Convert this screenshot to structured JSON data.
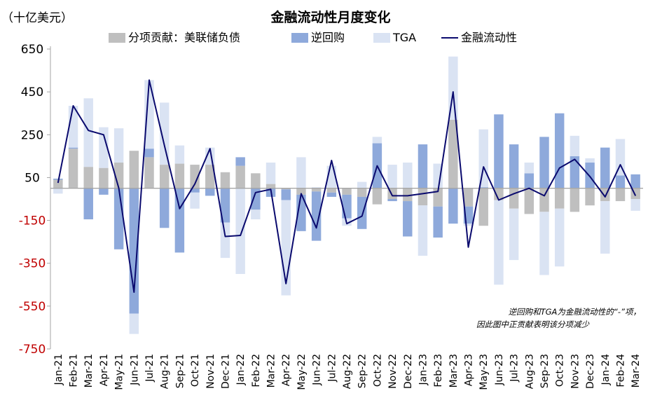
{
  "chart_data": {
    "type": "bar",
    "title": "金融流动性月度变化",
    "unit_label": "（十亿美元）",
    "stacked": true,
    "ylim": [
      -750,
      650
    ],
    "yticks": [
      650,
      450,
      250,
      50,
      -150,
      -350,
      -550,
      -750
    ],
    "grid": false,
    "legend_position": "top",
    "categories": [
      "Jan-21",
      "Feb-21",
      "Mar-21",
      "Apr-21",
      "May-21",
      "Jun-21",
      "Jul-21",
      "Aug-21",
      "Sep-21",
      "Oct-21",
      "Nov-21",
      "Dec-21",
      "Jan-22",
      "Feb-22",
      "Mar-22",
      "Apr-22",
      "May-22",
      "Jun-22",
      "Jul-22",
      "Aug-22",
      "Sep-22",
      "Oct-22",
      "Nov-22",
      "Dec-22",
      "Jan-23",
      "Feb-23",
      "Mar-23",
      "Apr-23",
      "May-23",
      "Jun-23",
      "Jul-23",
      "Aug-23",
      "Sep-23",
      "Oct-23",
      "Nov-23",
      "Dec-23",
      "Jan-24",
      "Feb-24",
      "Mar-24"
    ],
    "series": [
      {
        "name": "分项贡献：美联储负债",
        "type": "bar",
        "color": "#bfbfbf",
        "values": [
          40,
          185,
          100,
          95,
          120,
          175,
          145,
          110,
          115,
          110,
          110,
          75,
          105,
          70,
          20,
          -5,
          -30,
          -15,
          -20,
          -30,
          -40,
          -75,
          -50,
          -60,
          -80,
          -85,
          320,
          -85,
          -175,
          -55,
          -95,
          -120,
          -110,
          -95,
          -110,
          -80,
          -60,
          -60,
          -50
        ]
      },
      {
        "name": "逆回购",
        "type": "bar",
        "color": "#8ea9db",
        "values": [
          5,
          5,
          -145,
          -30,
          -285,
          -585,
          40,
          -185,
          -300,
          -20,
          -35,
          -160,
          40,
          -100,
          -40,
          -50,
          -170,
          -230,
          -20,
          -110,
          -150,
          210,
          -10,
          -165,
          205,
          -145,
          -165,
          -80,
          5,
          345,
          205,
          70,
          240,
          350,
          150,
          120,
          190,
          60,
          65
        ]
      },
      {
        "name": "TGA",
        "type": "bar",
        "color": "#dae3f3",
        "values": [
          -25,
          195,
          320,
          190,
          160,
          -95,
          320,
          290,
          85,
          -75,
          80,
          -165,
          -400,
          -45,
          100,
          -445,
          145,
          5,
          105,
          -35,
          30,
          30,
          110,
          120,
          -235,
          115,
          295,
          -10,
          270,
          -395,
          -240,
          50,
          -295,
          -270,
          95,
          20,
          -245,
          170,
          -55
        ]
      },
      {
        "name": "金融流动性",
        "type": "line",
        "color": "#0a0a6e",
        "values": [
          25,
          385,
          270,
          250,
          0,
          -485,
          505,
          200,
          -95,
          20,
          185,
          -225,
          -220,
          -20,
          -5,
          -445,
          -25,
          -185,
          130,
          -165,
          -130,
          105,
          -35,
          -35,
          -25,
          -15,
          450,
          -275,
          100,
          -55,
          -25,
          0,
          -35,
          95,
          135,
          55,
          -40,
          110,
          -35
        ]
      }
    ],
    "note_lines": [
      "逆回购和TGA为金融流动性的“-”项，",
      "因此图中正贡献表明该分项减少"
    ],
    "colors": {
      "negative_tick": "#c00000",
      "positive_tick": "#000000",
      "zero_line": "#a6a6a6",
      "axis": "#a6a6a6"
    }
  }
}
